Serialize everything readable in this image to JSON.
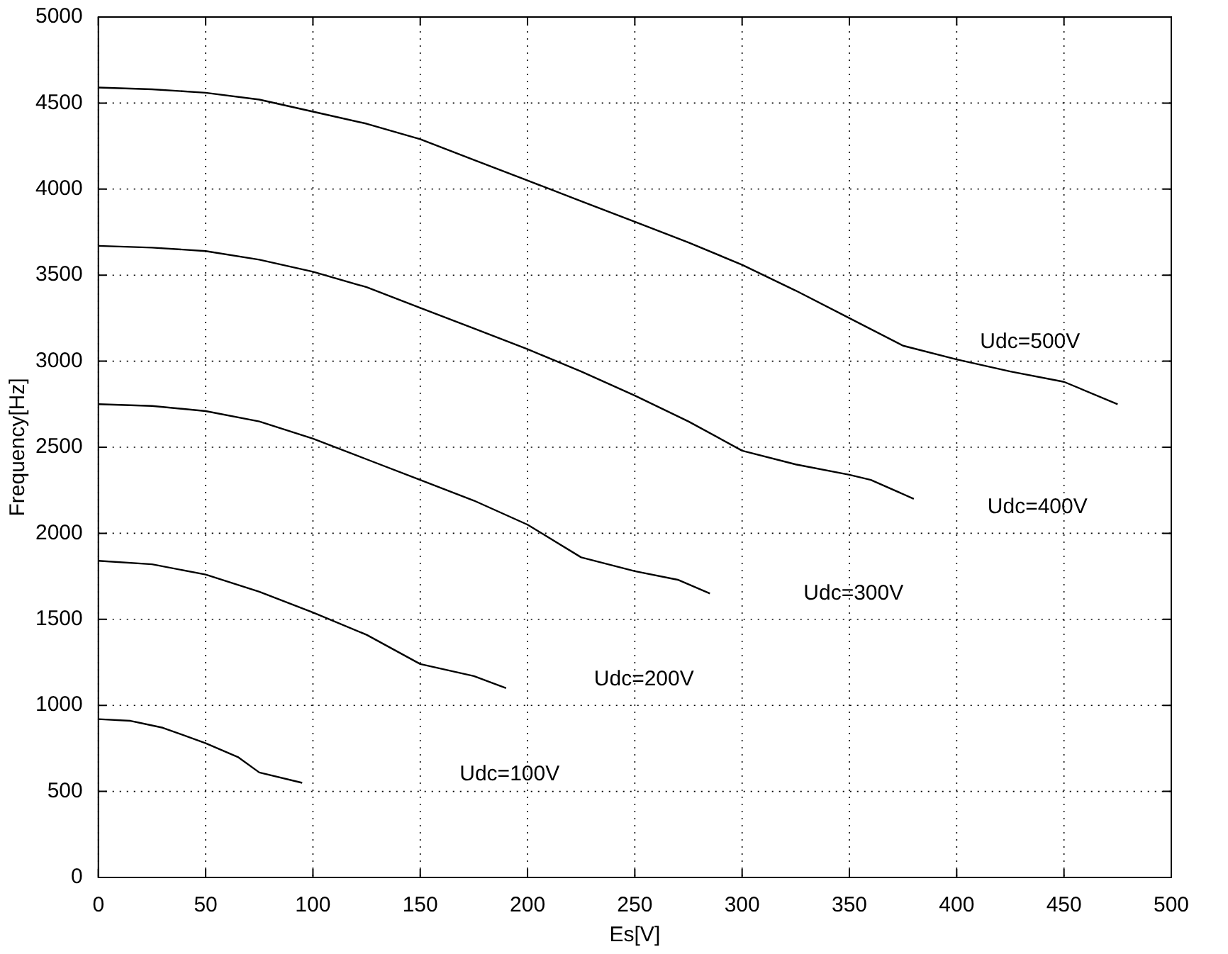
{
  "chart_data": {
    "type": "line",
    "xlabel": "Es[V]",
    "ylabel": "Frequency[Hz]",
    "xlim": [
      0,
      500
    ],
    "xticks": [
      0,
      50,
      100,
      150,
      200,
      250,
      300,
      350,
      400,
      450,
      500
    ],
    "ylim": [
      0,
      5000
    ],
    "yticks": [
      0,
      500,
      1000,
      1500,
      2000,
      2500,
      3000,
      3500,
      4000,
      4500,
      5000
    ],
    "grid": true,
    "legend": false,
    "marker": "none",
    "line_style": "solid",
    "series": [
      {
        "color": "#000000",
        "x": [
          0,
          25,
          50,
          75,
          100,
          125,
          150,
          175,
          200,
          225,
          250,
          275,
          300,
          325,
          350,
          375,
          400,
          425,
          450,
          475
        ],
        "values": [
          4590,
          4580,
          4560,
          4520,
          4450,
          4380,
          4290,
          4170,
          4050,
          3930,
          3810,
          3690,
          3560,
          3410,
          3250,
          3090,
          3010,
          2940,
          2880,
          2750
        ]
      },
      {
        "color": "#000000",
        "x": [
          0,
          25,
          50,
          75,
          100,
          125,
          150,
          175,
          200,
          225,
          250,
          275,
          300,
          325,
          350,
          360,
          380
        ],
        "values": [
          3670,
          3660,
          3640,
          3590,
          3520,
          3430,
          3310,
          3190,
          3070,
          2940,
          2800,
          2650,
          2480,
          2400,
          2340,
          2310,
          2200
        ]
      },
      {
        "color": "#000000",
        "x": [
          0,
          25,
          50,
          75,
          100,
          125,
          150,
          175,
          200,
          225,
          250,
          270,
          285
        ],
        "values": [
          2750,
          2740,
          2710,
          2650,
          2550,
          2430,
          2310,
          2190,
          2050,
          1860,
          1780,
          1730,
          1650
        ]
      },
      {
        "color": "#000000",
        "x": [
          0,
          25,
          50,
          75,
          100,
          125,
          150,
          175,
          190
        ],
        "values": [
          1840,
          1820,
          1760,
          1660,
          1540,
          1410,
          1240,
          1170,
          1100
        ]
      },
      {
        "color": "#000000",
        "x": [
          0,
          15,
          30,
          50,
          65,
          75,
          95
        ],
        "values": [
          920,
          910,
          870,
          780,
          700,
          610,
          550
        ]
      }
    ],
    "annotations": [
      "Udc=500V",
      "Udc=400V",
      "Udc=300V",
      "Udc=200V",
      "Udc=100V"
    ]
  }
}
